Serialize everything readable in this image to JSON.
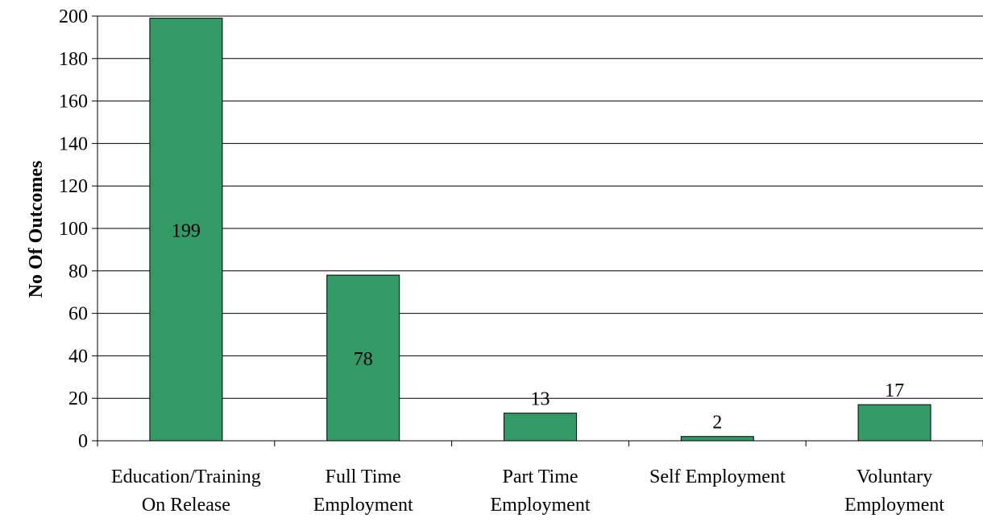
{
  "chart_data": {
    "type": "bar",
    "categories": [
      [
        "Education/Training",
        "On Release"
      ],
      [
        "Full Time",
        "Employment"
      ],
      [
        "Part Time",
        "Employment"
      ],
      [
        "Self Employment"
      ],
      [
        "Voluntary",
        "Employment"
      ]
    ],
    "values": [
      199,
      78,
      13,
      2,
      17
    ],
    "data_labels": [
      "199",
      "78",
      "13",
      "2",
      "17"
    ],
    "data_label_position": [
      "inside",
      "inside",
      "above",
      "above",
      "above"
    ],
    "title": "",
    "xlabel": "",
    "ylabel": "No Of Outcomes",
    "ylim": [
      0,
      200
    ],
    "yticks": [
      0,
      20,
      40,
      60,
      80,
      100,
      120,
      140,
      160,
      180,
      200
    ],
    "grid": "horizontal",
    "legend": "none",
    "bar_color": "#339966"
  }
}
